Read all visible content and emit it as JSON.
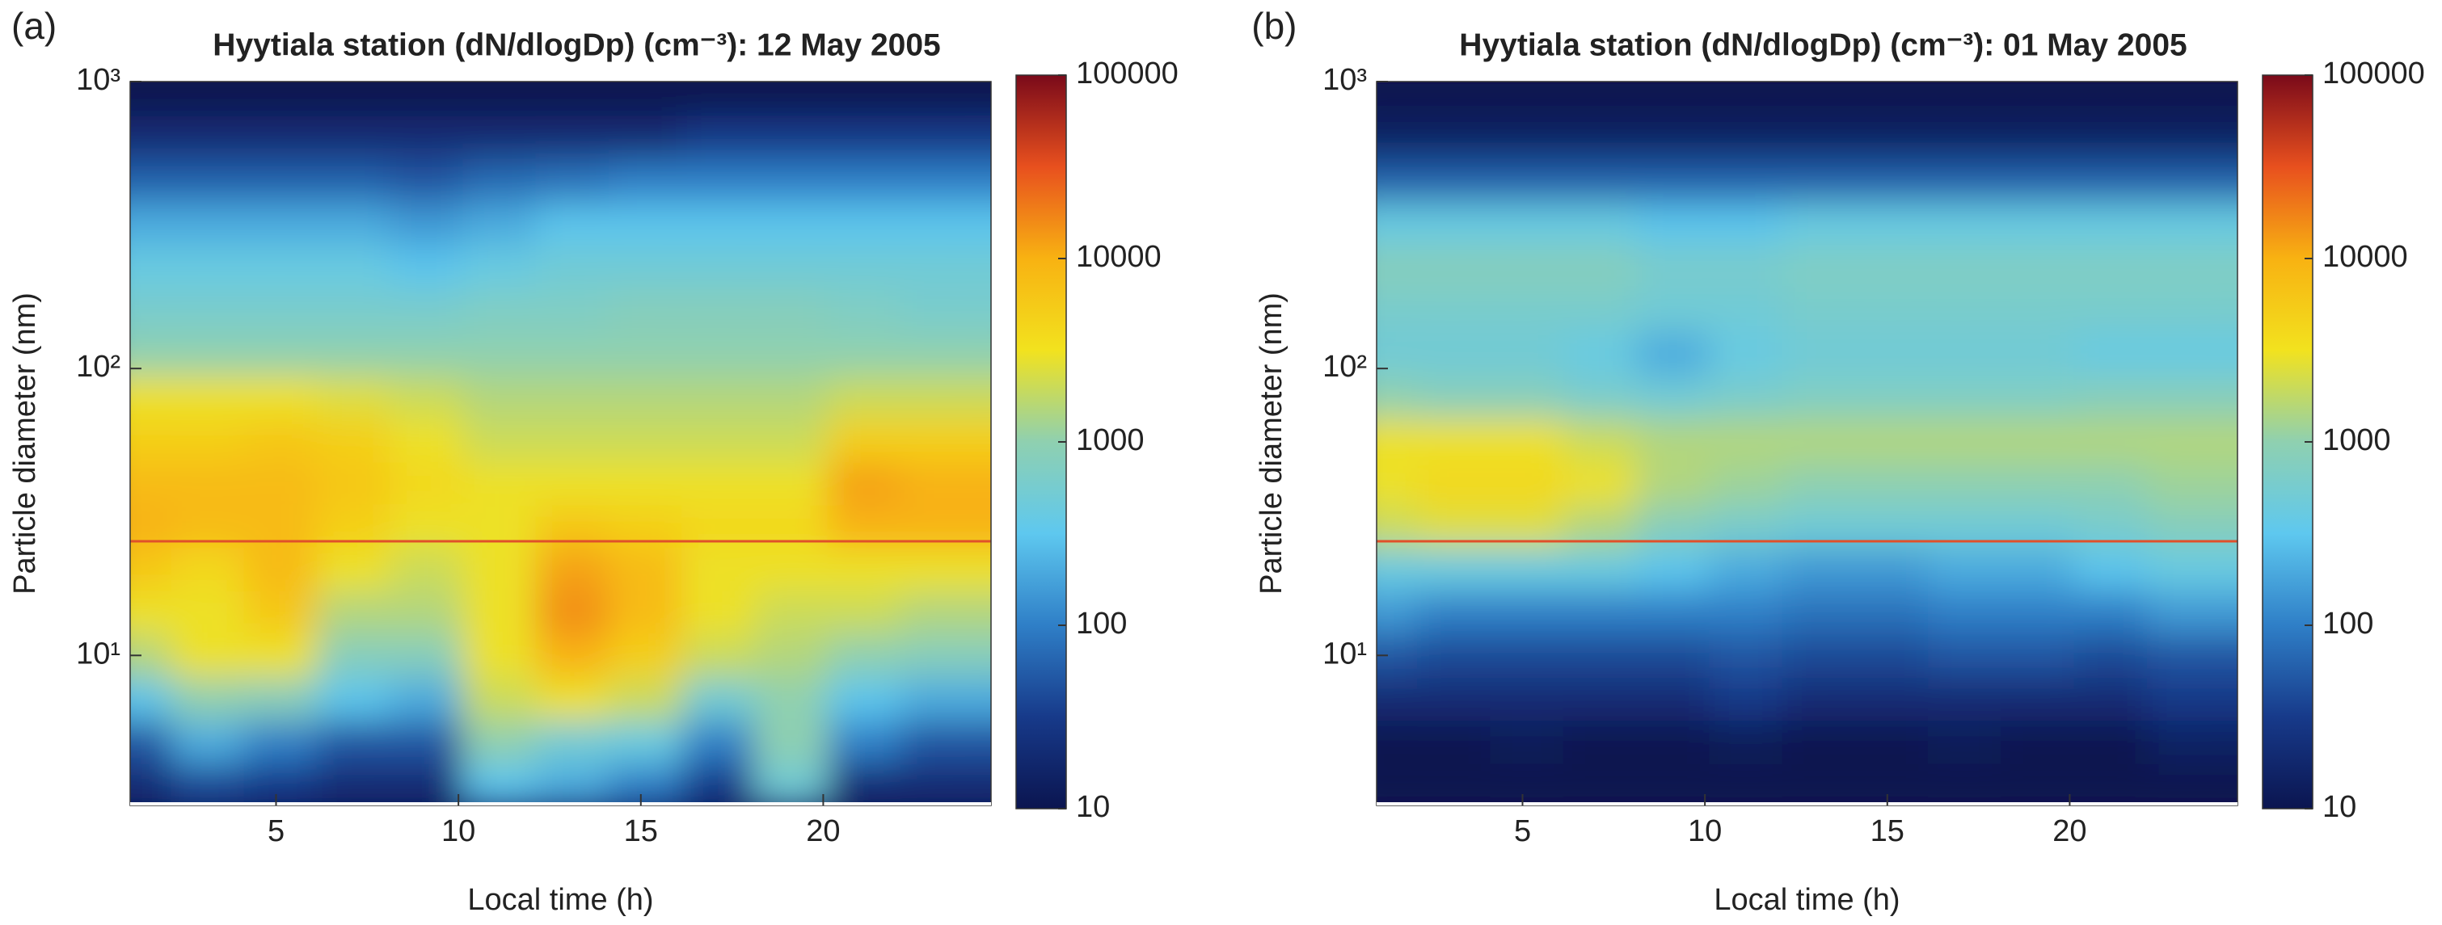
{
  "chart_data": [
    {
      "type": "heatmap",
      "panel_label": "(a)",
      "title": "Hyytiala station (dN/dlogDp) (cm⁻³): 12 May 2005",
      "xlabel": "Local time (h)",
      "ylabel": "Particle diameter (nm)",
      "x": [
        2,
        4,
        6,
        8,
        10,
        12,
        14,
        16,
        18,
        20,
        22,
        24
      ],
      "y": [
        3.5,
        5,
        7,
        10,
        14,
        20,
        28,
        40,
        56,
        80,
        112,
        160,
        225,
        320,
        450,
        640,
        900
      ],
      "z": [
        [
          20,
          40,
          30,
          20,
          20,
          300,
          200,
          100,
          30,
          500,
          20,
          20
        ],
        [
          50,
          200,
          100,
          50,
          50,
          1000,
          500,
          400,
          100,
          1000,
          100,
          50
        ],
        [
          300,
          1000,
          800,
          300,
          200,
          2000,
          3000,
          2000,
          500,
          1000,
          300,
          200
        ],
        [
          1500,
          3000,
          3000,
          800,
          800,
          3000,
          10000,
          5000,
          2000,
          1500,
          1000,
          800
        ],
        [
          3000,
          3000,
          6000,
          1500,
          1500,
          3000,
          15000,
          8000,
          3000,
          2000,
          2000,
          1500
        ],
        [
          6000,
          4000,
          8000,
          3000,
          2000,
          3000,
          12000,
          8000,
          3000,
          3000,
          3000,
          3000
        ],
        [
          10000,
          8000,
          8000,
          5000,
          3000,
          3000,
          6000,
          5000,
          4000,
          4000,
          10000,
          10000
        ],
        [
          8000,
          8000,
          8000,
          6000,
          4000,
          3000,
          3000,
          3000,
          3000,
          3000,
          12000,
          10000
        ],
        [
          5000,
          5000,
          6000,
          5000,
          3000,
          2000,
          2000,
          2000,
          2000,
          2000,
          5000,
          5000
        ],
        [
          3000,
          3000,
          3000,
          2500,
          2000,
          1500,
          1500,
          1500,
          1500,
          1500,
          2000,
          2000
        ],
        [
          1000,
          1000,
          1000,
          1000,
          1000,
          1000,
          1000,
          1000,
          1000,
          1000,
          1000,
          1000
        ],
        [
          600,
          600,
          600,
          600,
          600,
          700,
          700,
          800,
          800,
          800,
          700,
          600
        ],
        [
          400,
          400,
          400,
          400,
          300,
          400,
          500,
          500,
          500,
          500,
          500,
          500
        ],
        [
          200,
          200,
          200,
          200,
          150,
          200,
          300,
          300,
          300,
          300,
          300,
          300
        ],
        [
          60,
          60,
          60,
          60,
          50,
          70,
          80,
          100,
          100,
          100,
          100,
          100
        ],
        [
          20,
          20,
          20,
          20,
          20,
          20,
          20,
          20,
          30,
          30,
          30,
          30
        ],
        [
          10,
          10,
          10,
          10,
          10,
          10,
          10,
          10,
          10,
          10,
          10,
          10
        ]
      ],
      "xlim": [
        1,
        24.6
      ],
      "xticks": [
        5,
        10,
        15,
        20
      ],
      "ylim": [
        3,
        1000
      ],
      "ylog": true,
      "yticks": [
        {
          "value": 10,
          "label": "10¹"
        },
        {
          "value": 100,
          "label": "10²"
        },
        {
          "value": 1000,
          "label": "10³"
        }
      ],
      "clim": [
        10,
        100000
      ],
      "clog": true,
      "cticks": [
        10,
        100,
        1000,
        10000,
        100000
      ],
      "colormap": [
        "#0b1550",
        "#173a8a",
        "#2f7fc7",
        "#5ec8ef",
        "#8fd0b0",
        "#f2e21e",
        "#f8b212",
        "#e8501e",
        "#7a0a1a"
      ],
      "hline": 25,
      "hline_color": "#e0502a"
    },
    {
      "type": "heatmap",
      "panel_label": "(b)",
      "title": "Hyytiala station (dN/dlogDp) (cm⁻³): 01 May 2005",
      "xlabel": "Local time (h)",
      "ylabel": "Particle diameter (nm)",
      "x": [
        2,
        4,
        6,
        8,
        10,
        12,
        14,
        16,
        18,
        20,
        22,
        24
      ],
      "y": [
        3.5,
        5,
        7,
        10,
        14,
        20,
        28,
        40,
        56,
        80,
        112,
        160,
        225,
        320,
        450,
        640,
        900
      ],
      "z": [
        [
          10,
          10,
          10,
          10,
          10,
          10,
          10,
          10,
          10,
          10,
          10,
          10
        ],
        [
          10,
          10,
          12,
          10,
          10,
          12,
          10,
          10,
          12,
          10,
          10,
          15
        ],
        [
          20,
          20,
          20,
          20,
          20,
          30,
          20,
          20,
          20,
          20,
          20,
          30
        ],
        [
          50,
          40,
          40,
          40,
          40,
          50,
          40,
          40,
          50,
          50,
          40,
          50
        ],
        [
          150,
          100,
          100,
          100,
          100,
          100,
          80,
          80,
          100,
          100,
          100,
          150
        ],
        [
          400,
          400,
          400,
          400,
          300,
          200,
          150,
          150,
          200,
          200,
          300,
          400
        ],
        [
          2000,
          2500,
          2500,
          1500,
          800,
          600,
          500,
          500,
          500,
          500,
          600,
          800
        ],
        [
          3000,
          4000,
          4000,
          3000,
          1500,
          1200,
          1000,
          1000,
          1000,
          1000,
          1000,
          1200
        ],
        [
          3000,
          3000,
          3000,
          2000,
          1500,
          1500,
          1500,
          1500,
          1500,
          1500,
          1500,
          1500
        ],
        [
          1000,
          800,
          800,
          600,
          500,
          600,
          700,
          700,
          700,
          700,
          800,
          800
        ],
        [
          500,
          500,
          500,
          400,
          200,
          400,
          500,
          500,
          500,
          500,
          400,
          400
        ],
        [
          600,
          600,
          600,
          600,
          500,
          500,
          600,
          600,
          600,
          600,
          600,
          600
        ],
        [
          800,
          800,
          800,
          800,
          600,
          600,
          700,
          700,
          700,
          700,
          700,
          700
        ],
        [
          400,
          400,
          400,
          400,
          300,
          300,
          400,
          400,
          400,
          400,
          400,
          400
        ],
        [
          60,
          60,
          60,
          60,
          60,
          60,
          60,
          60,
          60,
          60,
          60,
          60
        ],
        [
          15,
          15,
          15,
          15,
          15,
          15,
          15,
          15,
          15,
          15,
          15,
          15
        ],
        [
          10,
          10,
          10,
          10,
          10,
          10,
          10,
          10,
          10,
          10,
          10,
          10
        ]
      ],
      "xlim": [
        1,
        24.6
      ],
      "xticks": [
        5,
        10,
        15,
        20
      ],
      "ylim": [
        3,
        1000
      ],
      "ylog": true,
      "yticks": [
        {
          "value": 10,
          "label": "10¹"
        },
        {
          "value": 100,
          "label": "10²"
        },
        {
          "value": 1000,
          "label": "10³"
        }
      ],
      "clim": [
        10,
        100000
      ],
      "clog": true,
      "cticks": [
        10,
        100,
        1000,
        10000,
        100000
      ],
      "colormap": [
        "#0b1550",
        "#173a8a",
        "#2f7fc7",
        "#5ec8ef",
        "#8fd0b0",
        "#f2e21e",
        "#f8b212",
        "#e8501e",
        "#7a0a1a"
      ],
      "hline": 25,
      "hline_color": "#e0502a"
    }
  ]
}
